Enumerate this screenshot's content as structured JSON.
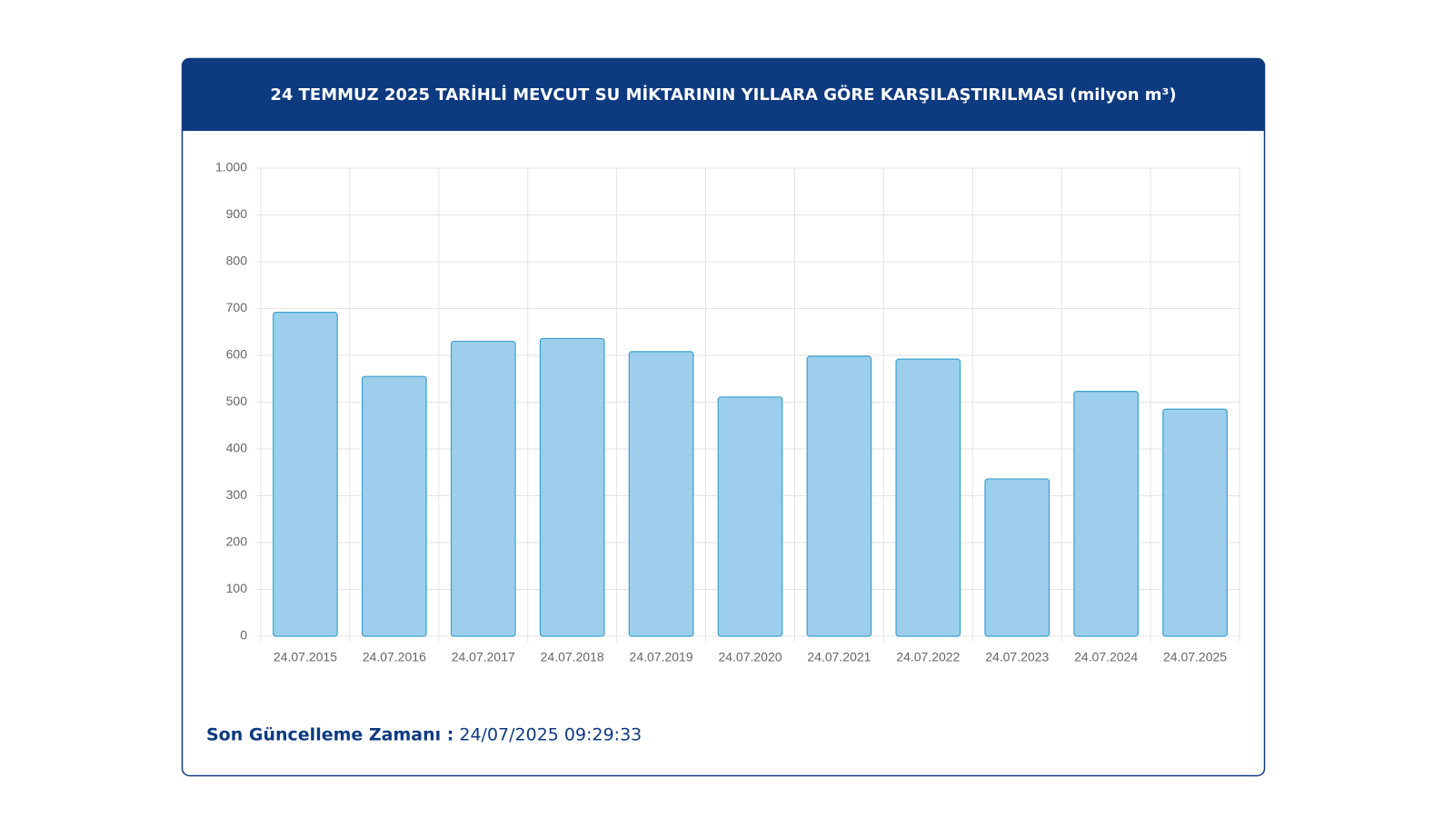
{
  "chart_data": {
    "type": "bar",
    "title": "24 TEMMUZ 2025 TARİHLİ MEVCUT SU MİKTARININ YILLARA GÖRE KARŞILAŞTIRILMASI (milyon m³)",
    "categories": [
      "24.07.2015",
      "24.07.2016",
      "24.07.2017",
      "24.07.2018",
      "24.07.2019",
      "24.07.2020",
      "24.07.2021",
      "24.07.2022",
      "24.07.2023",
      "24.07.2024",
      "24.07.2025"
    ],
    "values": [
      692,
      555,
      630,
      636,
      608,
      511,
      598,
      592,
      336,
      523,
      485
    ],
    "color": "#9dcfec",
    "ylim": [
      0,
      1000
    ],
    "yticks": [
      0,
      100,
      200,
      300,
      400,
      500,
      600,
      700,
      800,
      900,
      {
        "value": 1000,
        "label": "1.000"
      }
    ],
    "grid": true
  },
  "footer": {
    "label": "Son Güncelleme Zamanı :",
    "value": "24/07/2025 09:29:33"
  }
}
